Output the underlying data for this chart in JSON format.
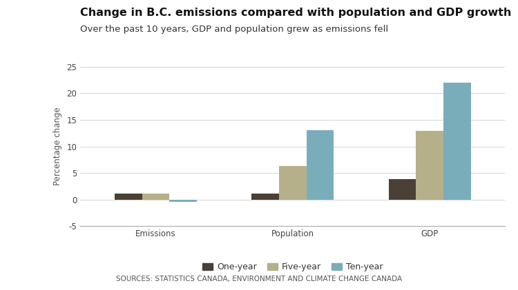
{
  "title": "Change in B.C. emissions compared with population and GDP growth",
  "subtitle": "Over the past 10 years, GDP and population grew as emissions fell",
  "source": "SOURCES: STATISTICS CANADA, ENVIRONMENT AND CLIMATE CHANGE CANADA",
  "categories": [
    "Emissions",
    "Population",
    "GDP"
  ],
  "series": {
    "One-year": [
      1.2,
      1.2,
      3.8
    ],
    "Five-year": [
      1.1,
      6.3,
      12.9
    ],
    "Ten-year": [
      -0.4,
      13.1,
      22.0
    ]
  },
  "colors": {
    "One-year": "#4a4036",
    "Five-year": "#b5b08a",
    "Ten-year": "#7aadba"
  },
  "ylabel": "Percentage change",
  "ylim": [
    -5,
    25
  ],
  "yticks": [
    -5,
    0,
    5,
    10,
    15,
    20,
    25
  ],
  "bar_width": 0.2,
  "background_color": "#ffffff",
  "title_fontsize": 11.5,
  "subtitle_fontsize": 9.5,
  "legend_fontsize": 9,
  "axis_fontsize": 8.5,
  "source_fontsize": 7.5
}
